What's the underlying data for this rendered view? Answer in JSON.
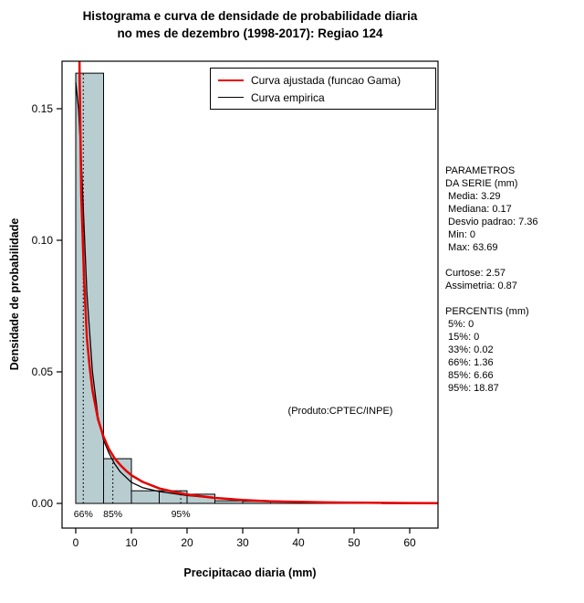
{
  "title": {
    "line1": "Histograma e curva de densidade de probabilidade diaria",
    "line2": "no mes de dezembro (1998-2017): Regiao 124"
  },
  "axes": {
    "xlabel": "Precipitacao diaria (mm)",
    "ylabel": "Densidade de probabilidade"
  },
  "legend": {
    "items": [
      {
        "label": "Curva ajustada (funcao Gama)",
        "color": "#e60000",
        "thickness": 2.5
      },
      {
        "label": "Curva empirica",
        "color": "#000000",
        "thickness": 1.5
      }
    ]
  },
  "annotation": "(Produto:CPTEC/INPE)",
  "stats_panel": {
    "text": "PARAMETROS\nDA SERIE (mm)\n Media: 3.29\n Mediana: 0.17\n Desvio padrao: 7.36\n Min: 0\n Max: 63.69\n\nCurtose: 2.57\nAssimetria: 0.87\n\nPERCENTIS (mm)\n 5%: 0\n 15%: 0\n 33%: 0.02\n 66%: 1.36\n 85%: 6.66\n 95%: 18.87"
  },
  "chart_data": {
    "type": "bar",
    "subtype": "histogram-with-density-curves",
    "title": "Histograma e curva de densidade de probabilidade diaria no mes de dezembro (1998-2017): Regiao 124",
    "xlabel": "Precipitacao diaria (mm)",
    "ylabel": "Densidade de probabilidade",
    "xlim": [
      0,
      65
    ],
    "ylim": [
      0,
      0.168
    ],
    "grid": false,
    "x_ticks": [
      0,
      10,
      20,
      30,
      40,
      50,
      60
    ],
    "y_ticks": [
      0.0,
      0.05,
      0.1,
      0.15
    ],
    "bar_fill": "#b8cdd0",
    "bar_stroke": "#000000",
    "bins": {
      "start": 0,
      "width": 5,
      "densities": [
        0.1635,
        0.017,
        0.0048,
        0.0048,
        0.0035,
        0.001,
        0.0008,
        0.0008,
        0.0003,
        0.0002,
        0.0002,
        0.0001,
        0.0002
      ]
    },
    "series": [
      {
        "name": "Curva ajustada (funcao Gama)",
        "color": "#e60000",
        "width": 2.5,
        "points": [
          [
            0.05,
            1.0
          ],
          [
            0.1,
            0.78
          ],
          [
            0.2,
            0.45
          ],
          [
            0.3,
            0.33
          ],
          [
            0.5,
            0.21
          ],
          [
            0.7,
            0.162
          ],
          [
            1,
            0.117
          ],
          [
            1.5,
            0.085
          ],
          [
            2,
            0.063
          ],
          [
            2.5,
            0.052
          ],
          [
            3,
            0.043
          ],
          [
            4,
            0.032
          ],
          [
            5,
            0.0253
          ],
          [
            6,
            0.0205
          ],
          [
            7,
            0.0171
          ],
          [
            8,
            0.0146
          ],
          [
            9,
            0.0125
          ],
          [
            10,
            0.0107
          ],
          [
            12,
            0.0082
          ],
          [
            15,
            0.0057
          ],
          [
            18,
            0.0042
          ],
          [
            20,
            0.0034
          ],
          [
            25,
            0.0021
          ],
          [
            30,
            0.0013
          ],
          [
            35,
            0.0008
          ],
          [
            40,
            0.0006
          ],
          [
            45,
            0.0004
          ],
          [
            50,
            0.0003
          ],
          [
            55,
            0.0002
          ],
          [
            60,
            0.00015
          ],
          [
            65,
            0.0001
          ]
        ]
      },
      {
        "name": "Curva empirica",
        "color": "#000000",
        "width": 1.3,
        "points": [
          [
            0,
            0.16
          ],
          [
            0.5,
            0.15
          ],
          [
            1,
            0.13
          ],
          [
            2,
            0.08
          ],
          [
            3,
            0.05
          ],
          [
            4,
            0.033
          ],
          [
            5,
            0.024
          ],
          [
            6,
            0.019
          ],
          [
            7,
            0.015
          ],
          [
            8,
            0.012
          ],
          [
            10,
            0.008
          ],
          [
            12,
            0.006
          ],
          [
            15,
            0.0045
          ],
          [
            18,
            0.0036
          ],
          [
            20,
            0.003
          ],
          [
            22,
            0.0026
          ],
          [
            25,
            0.002
          ],
          [
            28,
            0.0016
          ],
          [
            30,
            0.0013
          ],
          [
            33,
            0.0011
          ],
          [
            36,
            0.0009
          ],
          [
            40,
            0.0006
          ],
          [
            44,
            0.0004
          ],
          [
            48,
            0.0003
          ],
          [
            52,
            0.0002
          ],
          [
            56,
            0.00015
          ],
          [
            60,
            0.0001
          ],
          [
            65,
            8e-05
          ]
        ]
      }
    ],
    "percentile_markers": [
      {
        "label": "66%",
        "x": 1.36,
        "height": 0.1635
      },
      {
        "label": "85%",
        "x": 6.66,
        "height": 0.017
      },
      {
        "label": "95%",
        "x": 18.87,
        "height": 0.0048
      }
    ]
  }
}
